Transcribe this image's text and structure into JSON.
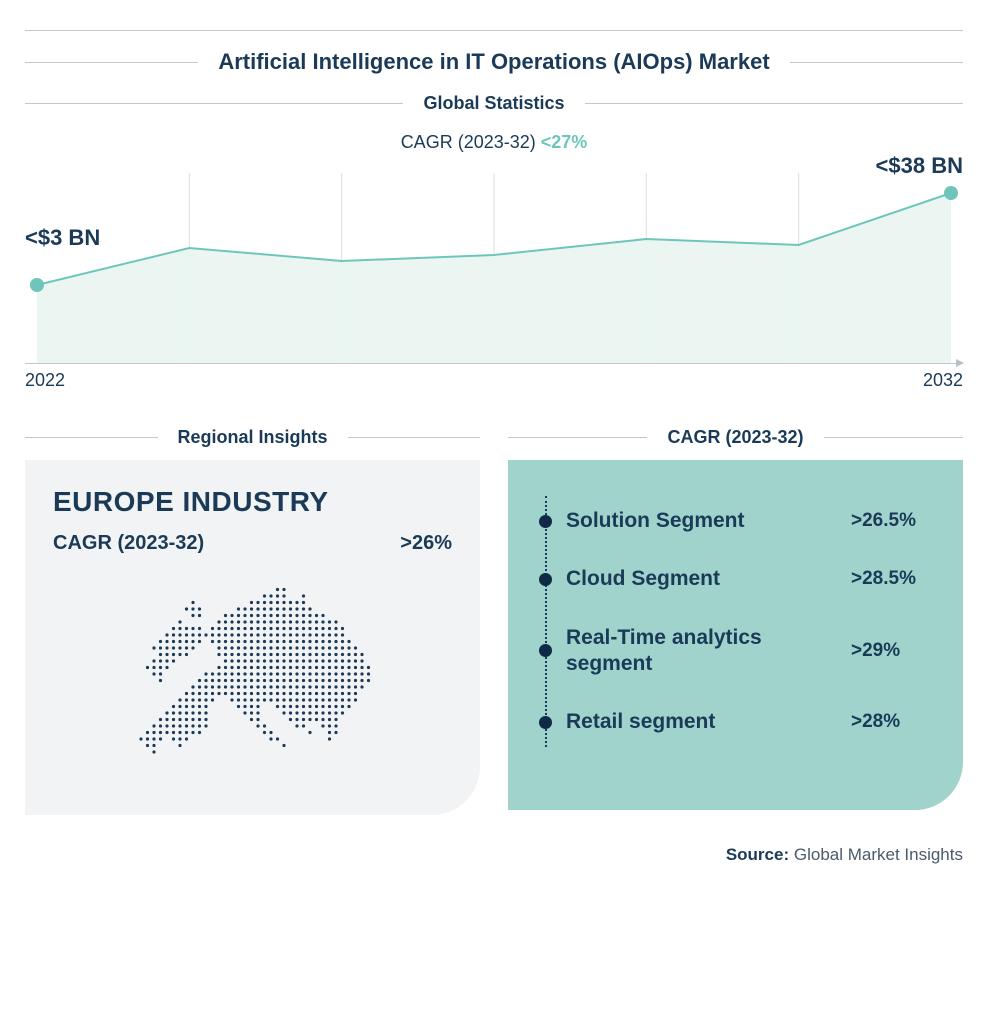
{
  "colors": {
    "dark_navy": "#1b3a57",
    "teal": "#6ec6bb",
    "pale_teal": "#e4f3f1",
    "grid": "#d9dee3",
    "panel_gray": "#f2f3f5",
    "panel_teal": "#9fd3cc",
    "dot_navy": "#0e2a45",
    "source_gray": "#4a5a6a"
  },
  "title": "Artificial Intelligence in IT Operations (AIOps) Market",
  "title_fontsize": 22,
  "global": {
    "heading": "Global Statistics",
    "cagr_label": "CAGR (2023-32)",
    "cagr_value": "<27%",
    "chart": {
      "type": "area",
      "x_start_label": "2022",
      "x_end_label": "2032",
      "start_callout": "<$3 BN",
      "end_callout": "<$38 BN",
      "grid_count": 6,
      "points_y": [
        122,
        85,
        98,
        92,
        76,
        82,
        30
      ],
      "line_color": "#6ec6bb",
      "line_width": 2,
      "fill_color": "#e9f5f2",
      "fill_opacity": 0.9,
      "marker_radius": 7,
      "marker_color": "#6ec6bb",
      "svg_viewbox_w": 938,
      "svg_viewbox_h": 200,
      "callout_fontsize": 22,
      "axis_label_fontsize": 18
    }
  },
  "regional": {
    "heading": "Regional Insights",
    "title": "EUROPE INDUSTRY",
    "sub_label": "CAGR (2023-32)",
    "sub_value": ">26%",
    "map_dot_color": "#1b3a57",
    "title_fontsize": 28
  },
  "segments": {
    "heading": "CAGR (2023-32)",
    "item_fontsize": 21,
    "value_fontsize": 19,
    "items": [
      {
        "name": "Solution Segment",
        "value": ">26.5%"
      },
      {
        "name": "Cloud Segment",
        "value": ">28.5%"
      },
      {
        "name": "Real-Time analytics segment",
        "value": ">29%"
      },
      {
        "name": "Retail segment",
        "value": ">28%"
      }
    ]
  },
  "source": {
    "label": "Source:",
    "name": "Global Market Insights"
  }
}
